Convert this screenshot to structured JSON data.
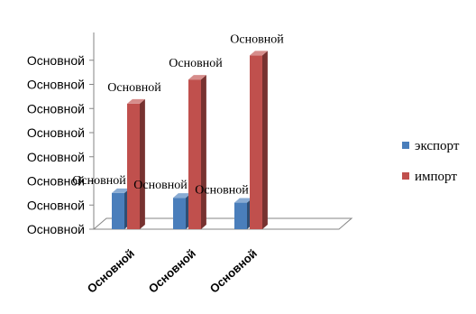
{
  "chart_data": {
    "type": "bar",
    "style": "3d-clustered-column",
    "title": "",
    "xlabel": "",
    "ylabel": "",
    "ylim": [
      0,
      8
    ],
    "y_tick_labels": [
      "Основной",
      "Основной",
      "Основной",
      "Основной",
      "Основной",
      "Основной",
      "Основной",
      "Основной"
    ],
    "categories": [
      "Основной",
      "Основной",
      "Основной",
      "Основной"
    ],
    "series": [
      {
        "name": "экспорт",
        "color": "#4a7ebb",
        "values": [
          1.5,
          1.3,
          1.1,
          null
        ],
        "data_labels": [
          "Основной",
          "Основной",
          "Основной",
          ""
        ]
      },
      {
        "name": "импорт",
        "color": "#c0504d",
        "values": [
          5.2,
          6.2,
          7.2,
          null
        ],
        "data_labels": [
          "Основной",
          "Основной",
          "Основной",
          ""
        ]
      }
    ],
    "x_tick_labels_shown": [
      "Основной",
      "Основной",
      "Основной"
    ],
    "legend": {
      "position": "right",
      "entries": [
        "экспорт",
        "импорт"
      ]
    },
    "grid": false
  }
}
